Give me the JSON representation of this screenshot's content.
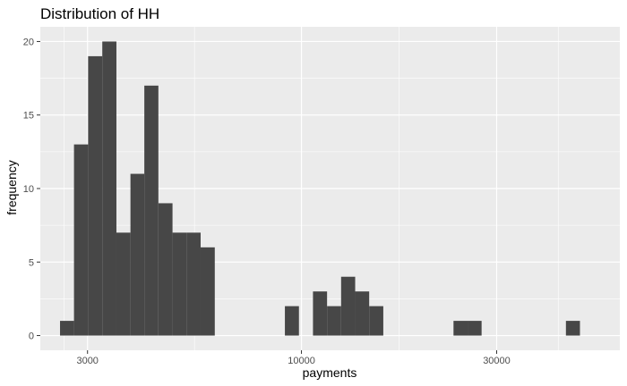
{
  "chart_data": {
    "type": "bar",
    "subtype": "histogram",
    "title": "Distribution of HH",
    "xlabel": "payments",
    "ylabel": "frequency",
    "x_scale": "log10",
    "xlim": [
      2300,
      60000
    ],
    "ylim": [
      -1,
      21
    ],
    "x_ticks": [
      {
        "value": 3000,
        "label": "3000"
      },
      {
        "value": 10000,
        "label": "10000"
      },
      {
        "value": 30000,
        "label": "30000"
      }
    ],
    "y_ticks": [
      {
        "value": 0,
        "label": "0"
      },
      {
        "value": 5,
        "label": "5"
      },
      {
        "value": 10,
        "label": "10"
      },
      {
        "value": 15,
        "label": "15"
      },
      {
        "value": 20,
        "label": "20"
      }
    ],
    "grid": true,
    "legend": "none",
    "bar_color": "#474747",
    "panel_background": "#ebebeb",
    "grid_color": "#ffffff",
    "bins": [
      {
        "x0": 2570,
        "x1": 2780,
        "count": 1
      },
      {
        "x0": 2780,
        "x1": 3010,
        "count": 13
      },
      {
        "x0": 3010,
        "x1": 3260,
        "count": 19
      },
      {
        "x0": 3260,
        "x1": 3530,
        "count": 20
      },
      {
        "x0": 3530,
        "x1": 3820,
        "count": 7
      },
      {
        "x0": 3820,
        "x1": 4130,
        "count": 11
      },
      {
        "x0": 4130,
        "x1": 4470,
        "count": 17
      },
      {
        "x0": 4470,
        "x1": 4840,
        "count": 9
      },
      {
        "x0": 4840,
        "x1": 5240,
        "count": 7
      },
      {
        "x0": 5240,
        "x1": 5670,
        "count": 7
      },
      {
        "x0": 5670,
        "x1": 6140,
        "count": 6
      },
      {
        "x0": 6140,
        "x1": 6640,
        "count": 0
      },
      {
        "x0": 6640,
        "x1": 7190,
        "count": 0
      },
      {
        "x0": 7190,
        "x1": 7780,
        "count": 0
      },
      {
        "x0": 7780,
        "x1": 8420,
        "count": 0
      },
      {
        "x0": 8420,
        "x1": 9110,
        "count": 0
      },
      {
        "x0": 9110,
        "x1": 9860,
        "count": 2
      },
      {
        "x0": 9860,
        "x1": 10670,
        "count": 0
      },
      {
        "x0": 10670,
        "x1": 11550,
        "count": 3
      },
      {
        "x0": 11550,
        "x1": 12500,
        "count": 2
      },
      {
        "x0": 12500,
        "x1": 13530,
        "count": 4
      },
      {
        "x0": 13530,
        "x1": 14640,
        "count": 3
      },
      {
        "x0": 14640,
        "x1": 15850,
        "count": 2
      },
      {
        "x0": 15850,
        "x1": 17150,
        "count": 0
      },
      {
        "x0": 17150,
        "x1": 18560,
        "count": 0
      },
      {
        "x0": 18560,
        "x1": 20090,
        "count": 0
      },
      {
        "x0": 20090,
        "x1": 21740,
        "count": 0
      },
      {
        "x0": 21740,
        "x1": 23530,
        "count": 0
      },
      {
        "x0": 23530,
        "x1": 25470,
        "count": 1
      },
      {
        "x0": 25470,
        "x1": 27560,
        "count": 1
      },
      {
        "x0": 27560,
        "x1": 29830,
        "count": 0
      },
      {
        "x0": 29830,
        "x1": 32280,
        "count": 0
      },
      {
        "x0": 32280,
        "x1": 34940,
        "count": 0
      },
      {
        "x0": 34940,
        "x1": 37820,
        "count": 0
      },
      {
        "x0": 37820,
        "x1": 40930,
        "count": 0
      },
      {
        "x0": 40930,
        "x1": 44300,
        "count": 0
      },
      {
        "x0": 44300,
        "x1": 47940,
        "count": 1
      }
    ]
  }
}
